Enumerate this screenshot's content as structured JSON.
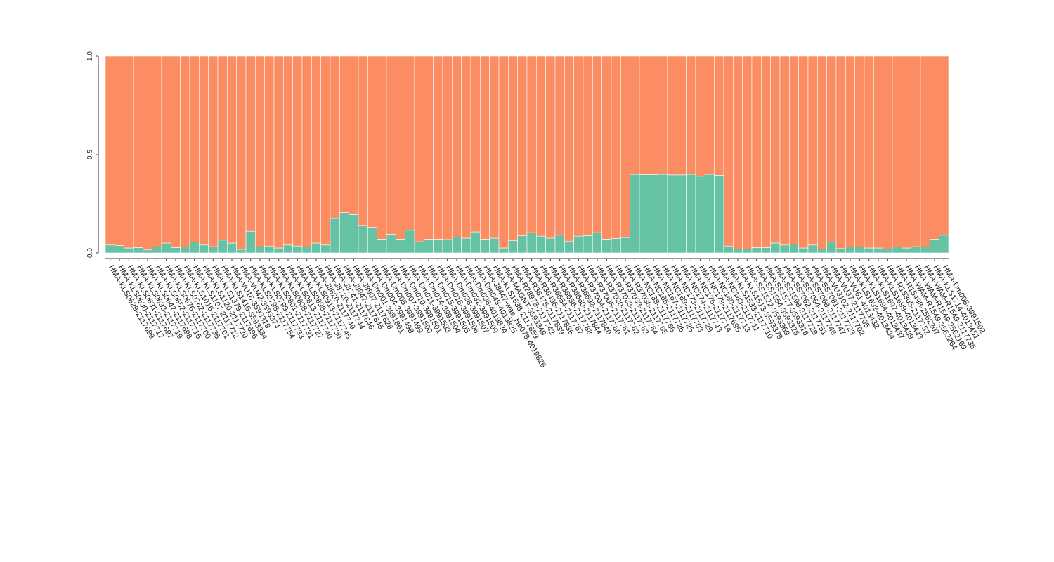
{
  "chart_data": {
    "type": "stacked_bar",
    "categories": [
      "HMA-KLS0629-2117699",
      "HMA-KLS0630-2117717",
      "HMA-KLS0631-2117697",
      "HMA-KLS0633-2117719",
      "HMA-KLS0647-2117698",
      "HMA-KLS0652-2117715",
      "HMA-KLS0676-2117700",
      "HMA-KLS0762-2117735",
      "HMA-KLS1016-2117701",
      "HMA-KLS1107-2117712",
      "HMA-KLS1120-2117720",
      "HMA-KLS1379-2117696",
      "HMA-KLS1416-3593334",
      "HMA-VU16-3593319",
      "HMA-VU42-3593374",
      "HMA-KLS0798-2117754",
      "HMA-KLS0799-2117733",
      "HMA-KLS0801-2117731",
      "HMA-KLS0808-2117727",
      "HMA-KLS0813-2117740",
      "HMA-KLS0898-2117730",
      "HMA-KLS0913-2117745",
      "HMA-J8620-2117749",
      "HMA-J8720-2117744",
      "HMA-J8741-2117846",
      "HMA-J8847-2117845",
      "HMA-J8907-2117828",
      "HMA-Dm001-3991861",
      "HMA-Dm004-3991498",
      "HMA-Dm005-3991499",
      "HMA-Dm007-3991500",
      "HMA-Dm010-3991501",
      "HMA-Dm011-3991503",
      "HMA-Dm014-3991504",
      "HMA-Dm015-3991505",
      "HMA-Dm018-3991506",
      "HMA-Dm028-3991507",
      "HMA-Dm032-3991509",
      "HMA-Dm036-4019824",
      "HMA-Dm045-4019825",
      "HMA-J8447-was_He078-4019826",
      "HMA-KLS1538-2117859",
      "HMA-MAGNT-3593349",
      "HMA-R28973-2117742",
      "HMA-R36475-2117839",
      "HMA-R36496-2117836",
      "HMA-R36654-2117767",
      "HMA-R36656-2117788",
      "HMA-R36660-2117844",
      "HMA-R36692-2117840",
      "HMA-R37004-2117760",
      "HMA-R37006-2117761",
      "HMA-R37020-2117762",
      "HMA-R37023-2117763",
      "HMA-R37033-2117764",
      "HMA-R37036-2117765",
      "HMA-NC138-2117766",
      "HMA-NC166-2117726",
      "HMA-NC167-2117725",
      "HMA-NC169-2117703",
      "HMA-NC173-2117729",
      "HMA-NC174-2117743",
      "HMA-NC176-2117714",
      "HMA-NC179-2117695",
      "HMA-NC180-2117713",
      "HMA-NC188-2117711",
      "HMA-KLS1533-2117710",
      "HMA-KLS1513-3593378",
      "HMA-SS1522-3593369",
      "HMA-SS1554-3593325",
      "HMA-SS1577-3593316",
      "HMA-SS1598-2117728",
      "HMA-SS7062-2117751",
      "HMA-SS7064-2117746",
      "HMA-SS7068-2117747",
      "HMA-SS7081-2117723",
      "HMA-VU3102-2117702",
      "HMA-VU37-2117705",
      "HMA-VU61-4013432",
      "HMA-KLS1692-4013434",
      "HMA-KLS1694-4013437",
      "HMA-KLS1697-4013439",
      "HMA-KLS1699-4013443",
      "HMA-R15305-2117752",
      "HMA-R15498-2562207",
      "HMA-WAM-R1549-2562264",
      "HMA-WAM-R1549-2562169",
      "HMA-WAM-R1549-2117736",
      "HMA-KLS1714-4013451",
      "HMA-Dm008-3991502"
    ],
    "series": [
      {
        "color": "#66c2a5",
        "values": [
          0.04,
          0.037,
          0.025,
          0.027,
          0.015,
          0.03,
          0.05,
          0.027,
          0.03,
          0.055,
          0.04,
          0.032,
          0.065,
          0.05,
          0.018,
          0.11,
          0.03,
          0.035,
          0.025,
          0.04,
          0.035,
          0.03,
          0.05,
          0.04,
          0.175,
          0.205,
          0.195,
          0.14,
          0.13,
          0.07,
          0.095,
          0.07,
          0.115,
          0.057,
          0.07,
          0.07,
          0.068,
          0.08,
          0.075,
          0.107,
          0.07,
          0.075,
          0.025,
          0.062,
          0.087,
          0.103,
          0.085,
          0.075,
          0.09,
          0.06,
          0.085,
          0.088,
          0.103,
          0.07,
          0.073,
          0.078,
          0.4,
          0.398,
          0.398,
          0.4,
          0.397,
          0.397,
          0.4,
          0.39,
          0.4,
          0.395,
          0.035,
          0.02,
          0.02,
          0.027,
          0.027,
          0.05,
          0.04,
          0.045,
          0.025,
          0.04,
          0.02,
          0.055,
          0.022,
          0.03,
          0.03,
          0.025,
          0.025,
          0.02,
          0.03,
          0.025,
          0.032,
          0.03,
          0.07,
          0.09
        ]
      },
      {
        "color": "#fc8d62",
        "values": [
          0.96,
          0.963,
          0.975,
          0.973,
          0.985,
          0.97,
          0.95,
          0.973,
          0.97,
          0.945,
          0.96,
          0.968,
          0.935,
          0.95,
          0.982,
          0.89,
          0.97,
          0.965,
          0.975,
          0.96,
          0.965,
          0.97,
          0.95,
          0.96,
          0.825,
          0.795,
          0.805,
          0.86,
          0.87,
          0.93,
          0.905,
          0.93,
          0.885,
          0.943,
          0.93,
          0.93,
          0.932,
          0.92,
          0.925,
          0.893,
          0.93,
          0.925,
          0.975,
          0.938,
          0.913,
          0.897,
          0.915,
          0.925,
          0.91,
          0.94,
          0.915,
          0.912,
          0.897,
          0.93,
          0.927,
          0.922,
          0.6,
          0.602,
          0.602,
          0.6,
          0.603,
          0.603,
          0.6,
          0.61,
          0.6,
          0.605,
          0.965,
          0.98,
          0.98,
          0.973,
          0.973,
          0.95,
          0.96,
          0.955,
          0.975,
          0.96,
          0.98,
          0.945,
          0.978,
          0.97,
          0.97,
          0.975,
          0.975,
          0.98,
          0.97,
          0.975,
          0.968,
          0.97,
          0.93,
          0.91
        ]
      }
    ],
    "ylim": [
      0,
      1
    ],
    "yticks": [
      {
        "value": 0,
        "label": "0.0"
      },
      {
        "value": 0.5,
        "label": "0.5"
      },
      {
        "value": 1,
        "label": "1.0"
      }
    ]
  }
}
